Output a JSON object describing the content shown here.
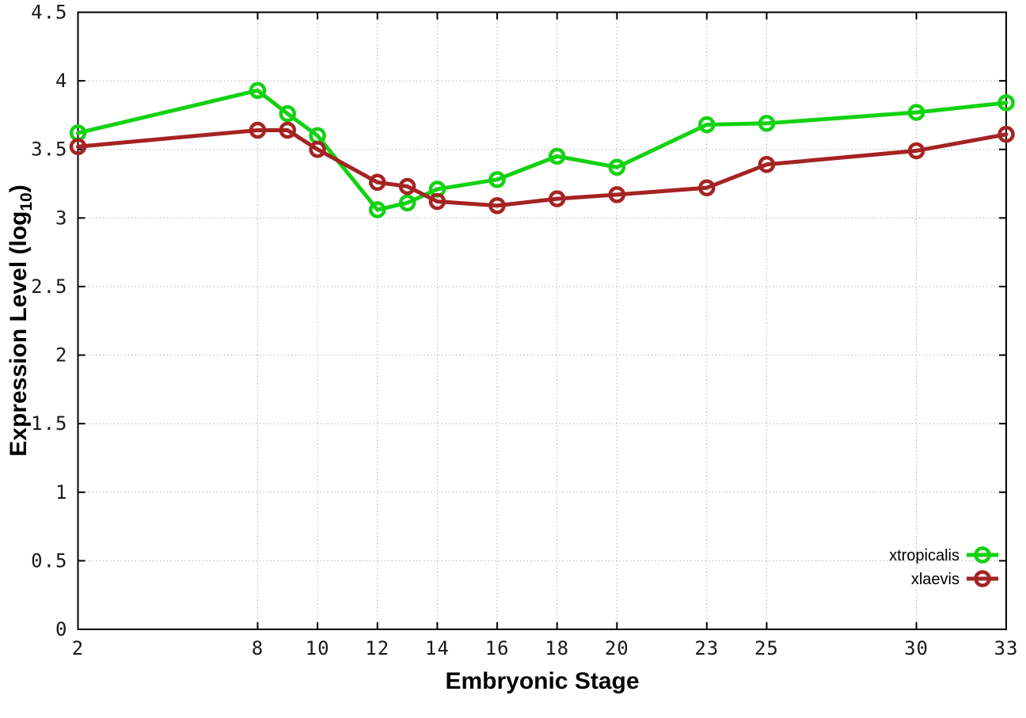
{
  "chart_data": {
    "type": "line",
    "title": "",
    "xlabel": "Embryonic Stage",
    "ylabel": "Expression Level (log10)",
    "ylabel_parts": {
      "base": "Expression Level (log",
      "sub": "10",
      "close": ")"
    },
    "x": [
      2,
      8,
      9,
      10,
      12,
      13,
      14,
      16,
      18,
      20,
      23,
      25,
      30,
      33
    ],
    "series": [
      {
        "name": "xtropicalis",
        "color": "#12d212",
        "values": [
          3.62,
          3.93,
          3.76,
          3.6,
          3.06,
          3.11,
          3.21,
          3.28,
          3.45,
          3.37,
          3.68,
          3.69,
          3.77,
          3.84
        ]
      },
      {
        "name": "xlaevis",
        "color": "#a52323",
        "values": [
          3.52,
          3.64,
          3.64,
          3.5,
          3.26,
          3.23,
          3.12,
          3.09,
          3.14,
          3.17,
          3.22,
          3.39,
          3.49,
          3.61
        ]
      }
    ],
    "xticks": [
      2,
      8,
      10,
      12,
      14,
      16,
      18,
      20,
      23,
      25,
      30,
      33
    ],
    "yticks": [
      0,
      0.5,
      1,
      1.5,
      2,
      2.5,
      3,
      3.5,
      4,
      4.5
    ],
    "xlim": [
      2,
      33
    ],
    "ylim": [
      0,
      4.5
    ],
    "grid": true,
    "marker": "open-circle",
    "legend_position": "inside-bottom-right",
    "background_color": "#ffffff",
    "axis_color": "#000000",
    "grid_color": "#b4b4b4"
  }
}
